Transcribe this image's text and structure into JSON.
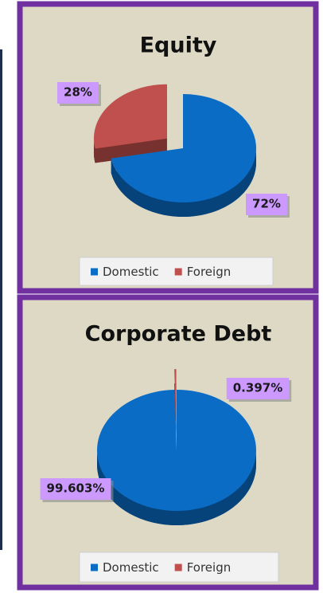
{
  "chart_data": [
    {
      "type": "pie",
      "title": "Equity",
      "categories": [
        "Domestic",
        "Foreign"
      ],
      "values": [
        72,
        28
      ],
      "value_labels": [
        "72%",
        "28%"
      ],
      "colors": [
        "#0a6cc4",
        "#c0504d"
      ],
      "legend": "bottom"
    },
    {
      "type": "pie",
      "title": "Corporate Debt",
      "categories": [
        "Domestic",
        "Foreign"
      ],
      "values": [
        99.603,
        0.397
      ],
      "value_labels": [
        "99.603%",
        "0.397%"
      ],
      "colors": [
        "#0a6cc4",
        "#c0504d"
      ],
      "legend": "bottom"
    }
  ]
}
